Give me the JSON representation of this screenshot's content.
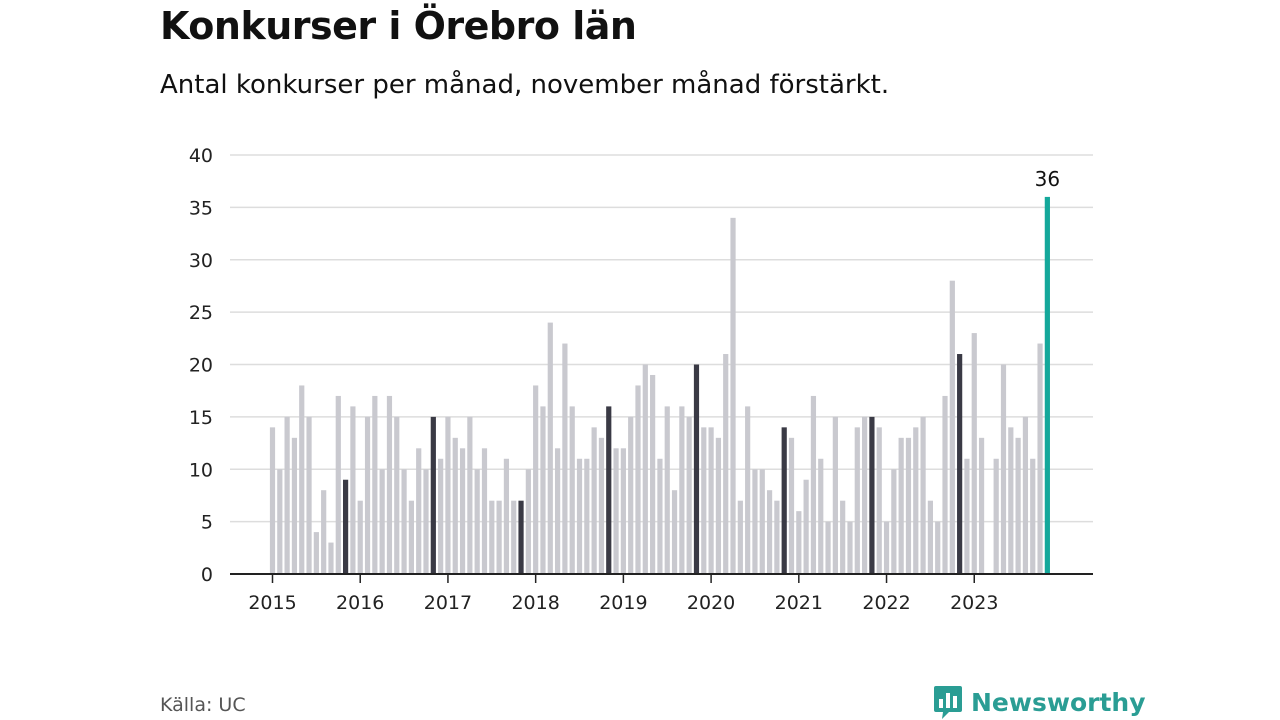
{
  "header": {
    "title": "Konkurser i Örebro län",
    "subtitle": "Antal konkurser per månad, november månad förstärkt."
  },
  "footer": {
    "source": "Källa: UC",
    "brand": "Newsworthy"
  },
  "colors": {
    "normal_bar": "#c9c9cf",
    "november_bar": "#3a3a45",
    "highlight_bar": "#14a89b",
    "gridline": "#dddddd",
    "axis": "#222222",
    "brand": "#2a9d94"
  },
  "chart_data": {
    "type": "bar",
    "title": "Konkurser i Örebro län",
    "subtitle": "Antal konkurser per månad, november månad förstärkt.",
    "ylim": [
      0,
      40
    ],
    "yticks": [
      0,
      5,
      10,
      15,
      20,
      25,
      30,
      35,
      40
    ],
    "year_labels": [
      "2015",
      "2016",
      "2017",
      "2018",
      "2019",
      "2020",
      "2021",
      "2022",
      "2023"
    ],
    "grid": true,
    "start_month": "2015-01",
    "values": [
      14,
      10,
      15,
      13,
      18,
      15,
      4,
      8,
      3,
      17,
      9,
      16,
      7,
      15,
      17,
      10,
      17,
      15,
      10,
      7,
      12,
      10,
      15,
      11,
      15,
      13,
      12,
      15,
      10,
      12,
      7,
      7,
      11,
      7,
      7,
      10,
      18,
      16,
      24,
      12,
      22,
      16,
      11,
      11,
      14,
      13,
      16,
      12,
      12,
      15,
      18,
      20,
      19,
      11,
      16,
      8,
      16,
      15,
      20,
      14,
      14,
      13,
      21,
      34,
      7,
      16,
      10,
      10,
      8,
      7,
      14,
      13,
      6,
      9,
      17,
      11,
      5,
      15,
      7,
      5,
      14,
      15,
      15,
      14,
      5,
      10,
      13,
      13,
      14,
      15,
      7,
      5,
      17,
      28,
      21,
      11,
      23,
      13,
      0,
      11,
      20,
      14,
      13,
      15,
      11,
      22,
      36
    ],
    "november_emphasis": true,
    "highlight": {
      "index": 106,
      "label": "36"
    }
  }
}
